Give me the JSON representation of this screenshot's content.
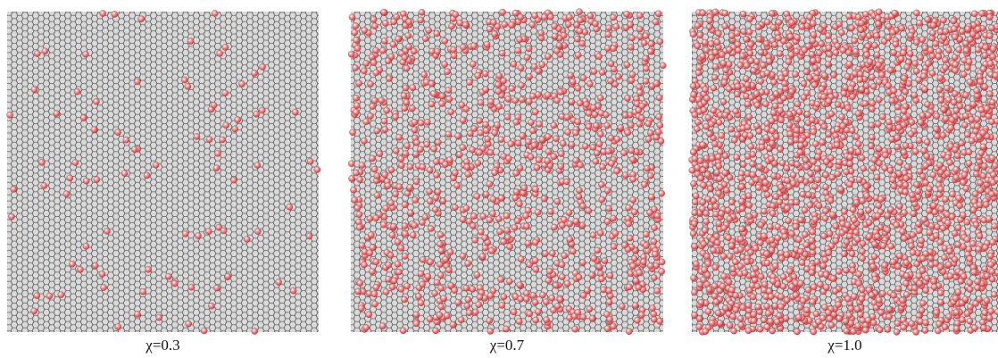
{
  "panels": [
    {
      "label": "χ=0.3"
    },
    {
      "label": "χ=0.7"
    },
    {
      "label": "χ=1.0"
    }
  ]
}
